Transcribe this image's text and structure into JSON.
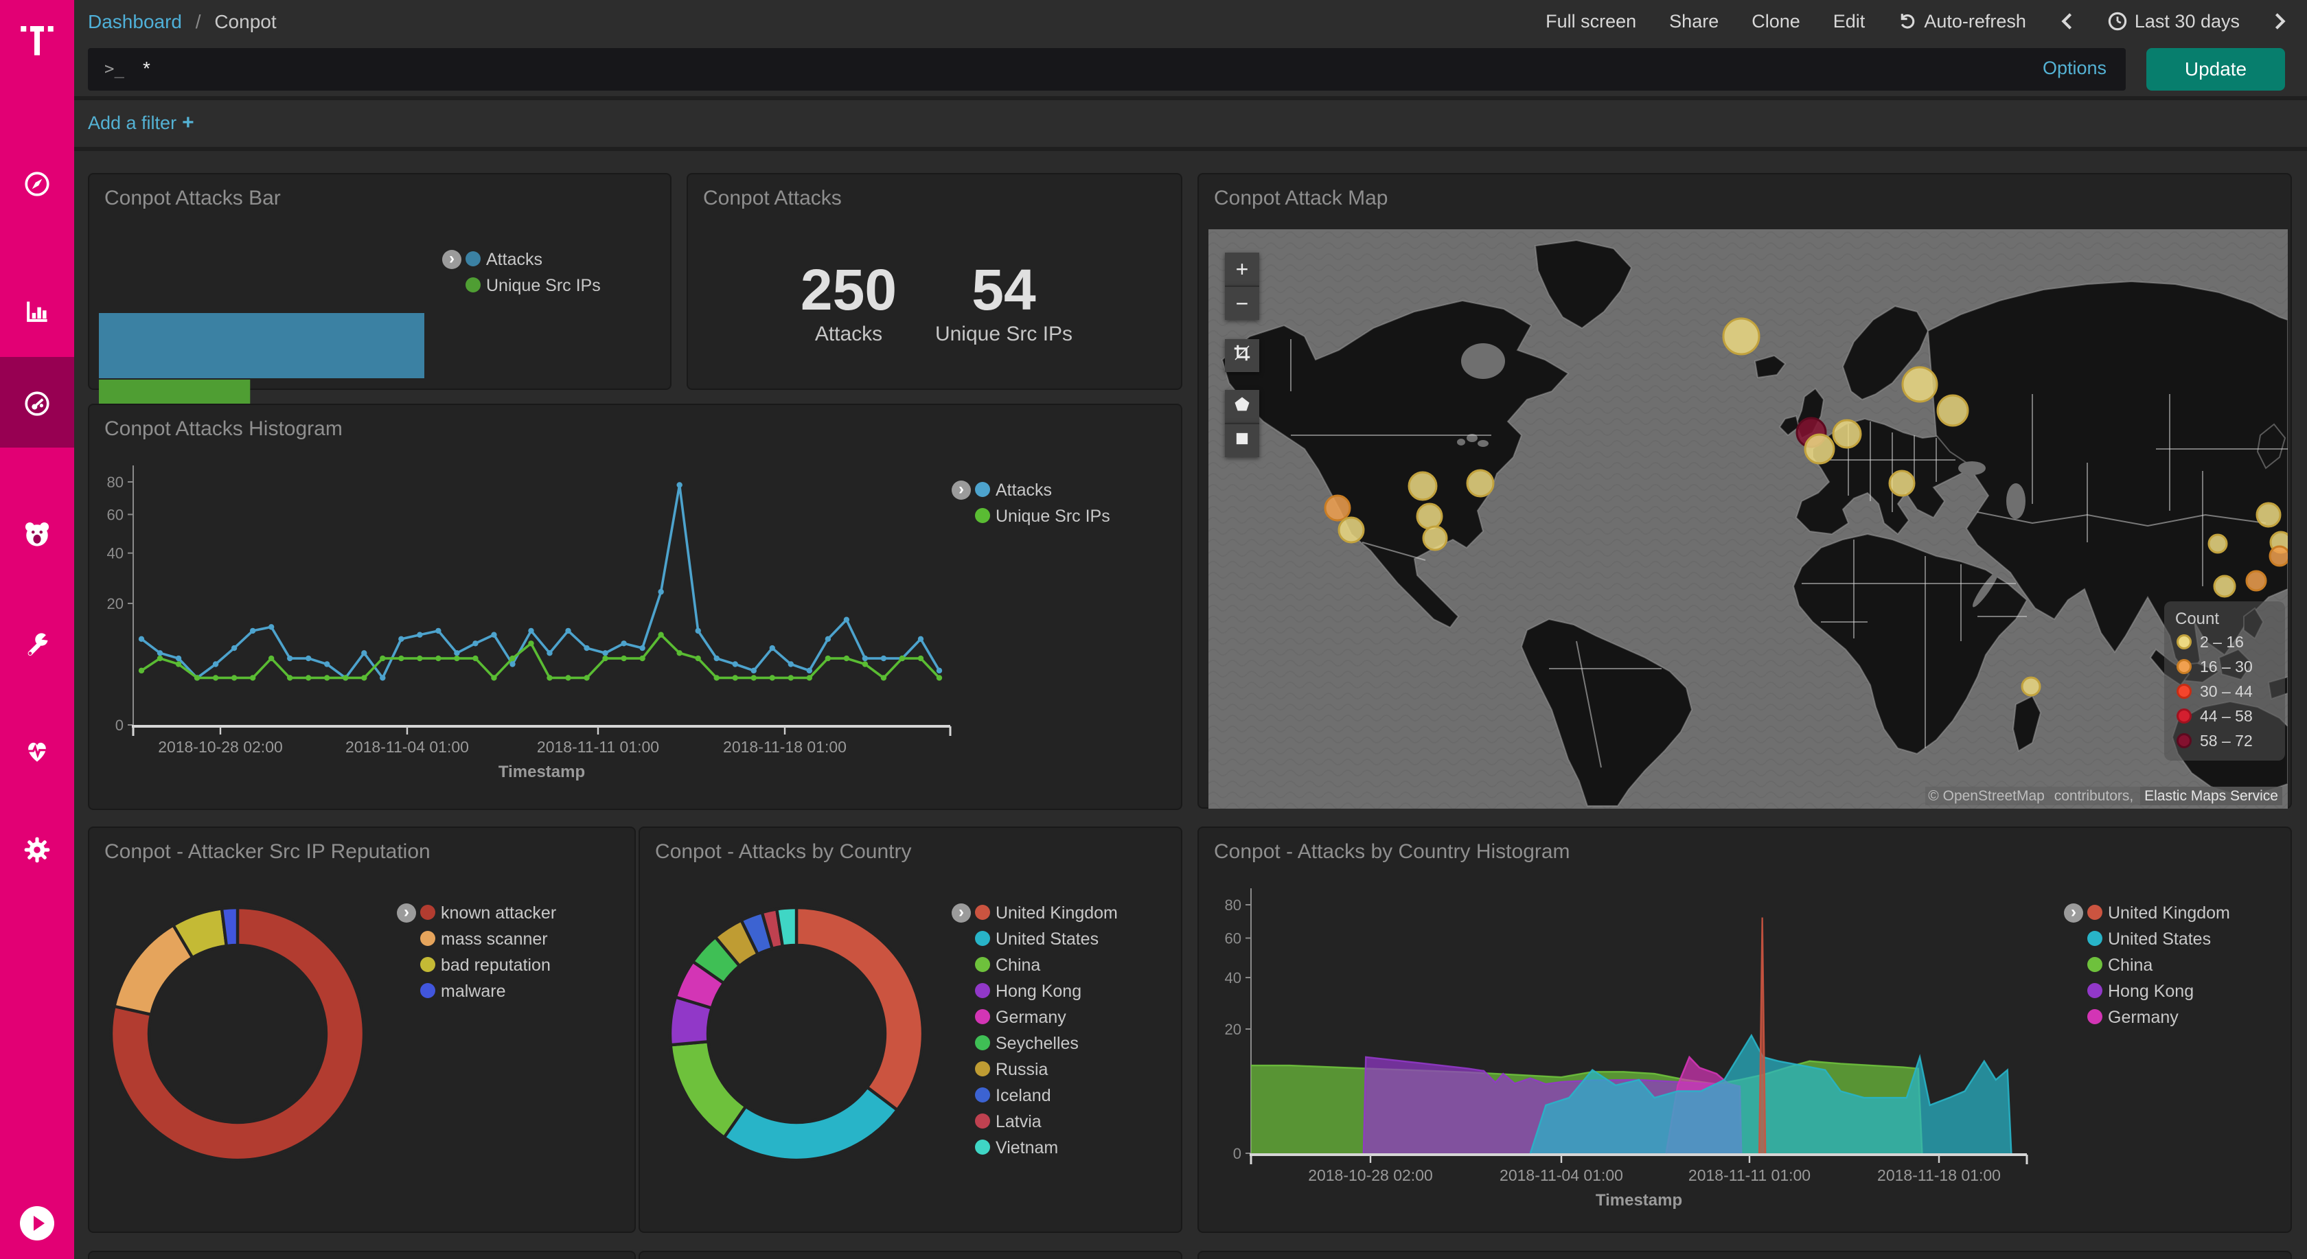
{
  "sidebar": {
    "brand": "T",
    "items": [
      {
        "name": "discover",
        "icon": "compass-icon"
      },
      {
        "name": "visualize",
        "icon": "bar-chart-icon"
      },
      {
        "name": "dashboard",
        "icon": "gauge-icon",
        "active": true
      },
      {
        "name": "timelion",
        "icon": "bear-icon"
      },
      {
        "name": "dev-tools",
        "icon": "wrench-icon"
      },
      {
        "name": "monitoring",
        "icon": "heartbeat-icon"
      },
      {
        "name": "management",
        "icon": "gear-icon"
      }
    ]
  },
  "topnav": {
    "breadcrumb": {
      "root": "Dashboard",
      "sep": "/",
      "current": "Conpot"
    },
    "menu": [
      "Full screen",
      "Share",
      "Clone",
      "Edit"
    ],
    "auto_refresh": "Auto-refresh",
    "time_range": "Last 30 days"
  },
  "query_bar": {
    "prompt": ">_",
    "value": "*",
    "options_label": "Options",
    "update_label": "Update"
  },
  "filter_bar": {
    "add_filter_label": "Add a filter",
    "plus": "+"
  },
  "panels": [
    {
      "title": "Conpot Attacks Bar"
    },
    {
      "title": "Conpot Attacks"
    },
    {
      "title": "Conpot Attack Map"
    },
    {
      "title": "Conpot Attacks Histogram"
    },
    {
      "title": "Conpot - Attacker Src IP Reputation"
    },
    {
      "title": "Conpot - Attacks by Country"
    },
    {
      "title": "Conpot - Attacks by Country Histogram"
    }
  ],
  "accent_colors": {
    "brand_magenta": "#e20074",
    "update_teal": "#077e6d",
    "link_blue": "#54b2d4"
  },
  "chart_data": [
    {
      "id": "attacks_bar",
      "type": "bar",
      "orientation": "horizontal",
      "scale": "sqrt",
      "categories": [
        "Attacks",
        "Unique Src IPs"
      ],
      "values": [
        250,
        54
      ],
      "colors": [
        "#3b81a3",
        "#4f9e33"
      ],
      "xticks": [
        50,
        100,
        150,
        200
      ],
      "xmax": 250,
      "legend": [
        "Attacks",
        "Unique Src IPs"
      ],
      "legend_position": "right"
    },
    {
      "id": "attacks_metric",
      "type": "metric",
      "metrics": [
        {
          "value": "250",
          "label": "Attacks"
        },
        {
          "value": "54",
          "label": "Unique Src IPs"
        }
      ]
    },
    {
      "id": "attack_map",
      "type": "map",
      "legend_title": "Count",
      "bins": [
        {
          "label": "2 – 16",
          "fill": "#ecd982",
          "stroke": "#c2a23d"
        },
        {
          "label": "16 – 30",
          "fill": "#f0a04f",
          "stroke": "#c97d24"
        },
        {
          "label": "30 – 44",
          "fill": "#f5452c",
          "stroke": "#c62d15"
        },
        {
          "label": "44 – 58",
          "fill": "#d41f2f",
          "stroke": "#a01220"
        },
        {
          "label": "58 – 72",
          "fill": "#84112f",
          "stroke": "#5c0a1f"
        }
      ],
      "bubbles": [
        {
          "x": 388,
          "y": 78,
          "r": 13,
          "bin": 0
        },
        {
          "x": 518,
          "y": 113,
          "r": 12.5,
          "bin": 0
        },
        {
          "x": 542,
          "y": 132,
          "r": 11,
          "bin": 0
        },
        {
          "x": 439,
          "y": 148,
          "r": 10.5,
          "bin": 4
        },
        {
          "x": 465,
          "y": 149,
          "r": 10,
          "bin": 0
        },
        {
          "x": 445,
          "y": 160,
          "r": 10.5,
          "bin": 0
        },
        {
          "x": 505,
          "y": 185,
          "r": 9,
          "bin": 0
        },
        {
          "x": 198,
          "y": 185,
          "r": 9.5,
          "bin": 0
        },
        {
          "x": 156,
          "y": 187,
          "r": 10,
          "bin": 0
        },
        {
          "x": 94,
          "y": 203,
          "r": 9,
          "bin": 1
        },
        {
          "x": 104,
          "y": 219,
          "r": 9,
          "bin": 0
        },
        {
          "x": 161,
          "y": 209,
          "r": 9,
          "bin": 0
        },
        {
          "x": 165,
          "y": 225,
          "r": 8.5,
          "bin": 0
        },
        {
          "x": 772,
          "y": 208,
          "r": 8.5,
          "bin": 0
        },
        {
          "x": 735,
          "y": 229,
          "r": 6.5,
          "bin": 0
        },
        {
          "x": 781,
          "y": 228,
          "r": 7.5,
          "bin": 0
        },
        {
          "x": 780,
          "y": 238,
          "r": 7,
          "bin": 1
        },
        {
          "x": 763,
          "y": 256,
          "r": 7,
          "bin": 1
        },
        {
          "x": 740,
          "y": 260,
          "r": 7.5,
          "bin": 0
        },
        {
          "x": 599,
          "y": 333,
          "r": 6.5,
          "bin": 0
        }
      ],
      "controls": [
        "zoom-in",
        "zoom-out",
        "fit-crop",
        "draw-polygon",
        "draw-rectangle"
      ],
      "attribution": {
        "c1": "© OpenStreetMap",
        "c2": " contributors, ",
        "c3": "Elastic Maps Service"
      }
    },
    {
      "id": "attacks_histogram",
      "type": "line",
      "scale": "sqrt",
      "ymax": 80,
      "yticks": [
        0,
        20,
        40,
        60,
        80
      ],
      "xlabel": "Timestamp",
      "xticks": [
        "2018-10-28 02:00",
        "2018-11-04 01:00",
        "2018-11-11 01:00",
        "2018-11-18 01:00"
      ],
      "series": [
        {
          "name": "Attacks",
          "color": "#4da3cd",
          "values": [
            10,
            7,
            6,
            3,
            5,
            8,
            12,
            13,
            6,
            6,
            5,
            3,
            7,
            3,
            10,
            11,
            12,
            7,
            9,
            11,
            5,
            12,
            7,
            12,
            8,
            7,
            9,
            8,
            24,
            78,
            12,
            6,
            5,
            4,
            8,
            5,
            4,
            10,
            15,
            6,
            6,
            6,
            10,
            4
          ]
        },
        {
          "name": "Unique Src IPs",
          "color": "#5abc33",
          "values": [
            4,
            6,
            5,
            3,
            3,
            3,
            3,
            6,
            3,
            3,
            3,
            3,
            3,
            6,
            6,
            6,
            6,
            6,
            6,
            3,
            6,
            9,
            3,
            3,
            3,
            6,
            6,
            6,
            11,
            7,
            6,
            3,
            3,
            3,
            3,
            3,
            3,
            6,
            6,
            5,
            3,
            6,
            6,
            3
          ]
        }
      ]
    },
    {
      "id": "reputation_donut",
      "type": "pie",
      "donut": true,
      "labels": [
        "known attacker",
        "mass scanner",
        "bad reputation",
        "malware"
      ],
      "values": [
        78.5,
        13,
        6.5,
        2
      ],
      "colors": [
        "#b23c30",
        "#e5a45c",
        "#c4ba35",
        "#4156dd"
      ]
    },
    {
      "id": "country_donut",
      "type": "pie",
      "donut": true,
      "labels": [
        "United Kingdom",
        "United States",
        "China",
        "Hong Kong",
        "Germany",
        "Seychelles",
        "Russia",
        "Iceland",
        "Latvia",
        "Vietnam"
      ],
      "values": [
        35.3,
        24.4,
        13.9,
        6.1,
        5.0,
        4.2,
        3.9,
        2.8,
        1.9,
        2.5
      ],
      "colors": [
        "#cb5440",
        "#28b4c8",
        "#6ec13c",
        "#9138c8",
        "#d335b5",
        "#3fbf55",
        "#bf9c33",
        "#3c63d2",
        "#bf4150",
        "#3fd6c5"
      ]
    },
    {
      "id": "country_histogram",
      "type": "area",
      "scale": "sqrt",
      "ymax": 80,
      "yticks": [
        0,
        20,
        40,
        60,
        80
      ],
      "xlabel": "Timestamp",
      "xticks": [
        "2018-10-28 02:00",
        "2018-11-04 01:00",
        "2018-11-11 01:00",
        "2018-11-18 01:00"
      ],
      "series": [
        {
          "name": "United Kingdom",
          "color": "#cb5440",
          "points": [
            [
              0.655,
              0
            ],
            [
              0.659,
              72
            ],
            [
              0.663,
              0
            ]
          ]
        },
        {
          "name": "United States",
          "color": "#28b4c8",
          "points": [
            [
              0.36,
              0
            ],
            [
              0.38,
              3
            ],
            [
              0.41,
              4
            ],
            [
              0.44,
              9
            ],
            [
              0.47,
              6
            ],
            [
              0.5,
              7
            ],
            [
              0.52,
              4
            ],
            [
              0.55,
              5
            ],
            [
              0.58,
              5
            ],
            [
              0.61,
              7
            ],
            [
              0.645,
              18
            ],
            [
              0.66,
              12
            ],
            [
              0.68,
              11
            ],
            [
              0.71,
              10
            ],
            [
              0.74,
              9
            ],
            [
              0.76,
              5
            ],
            [
              0.79,
              4
            ],
            [
              0.82,
              4
            ],
            [
              0.845,
              4
            ],
            [
              0.862,
              12
            ],
            [
              0.875,
              3
            ],
            [
              0.9,
              4
            ],
            [
              0.92,
              5
            ],
            [
              0.945,
              11
            ],
            [
              0.96,
              7
            ],
            [
              0.975,
              9
            ],
            [
              0.98,
              0
            ]
          ]
        },
        {
          "name": "China",
          "color": "#6ec13c",
          "points": [
            [
              0,
              10
            ],
            [
              0.05,
              10
            ],
            [
              0.12,
              9.5
            ],
            [
              0.2,
              9
            ],
            [
              0.28,
              8.5
            ],
            [
              0.34,
              8
            ],
            [
              0.4,
              7.5
            ],
            [
              0.44,
              8.6
            ],
            [
              0.48,
              8.6
            ],
            [
              0.52,
              8.2
            ],
            [
              0.56,
              7
            ],
            [
              0.6,
              6.2
            ],
            [
              0.63,
              7
            ],
            [
              0.66,
              8
            ],
            [
              0.7,
              10
            ],
            [
              0.72,
              11
            ],
            [
              0.76,
              10.4
            ],
            [
              0.8,
              10
            ],
            [
              0.84,
              9.6
            ],
            [
              0.86,
              9.3
            ],
            [
              0.865,
              0
            ]
          ]
        },
        {
          "name": "Hong Kong",
          "color": "#9138c8",
          "points": [
            [
              0.145,
              0
            ],
            [
              0.148,
              12
            ],
            [
              0.22,
              10.5
            ],
            [
              0.28,
              9.3
            ],
            [
              0.3,
              8.8
            ],
            [
              0.315,
              6.5
            ],
            [
              0.325,
              8.2
            ],
            [
              0.34,
              6.3
            ],
            [
              0.36,
              7.3
            ],
            [
              0.38,
              6.2
            ],
            [
              0.4,
              6.6
            ],
            [
              0.44,
              6.9
            ],
            [
              0.5,
              7
            ],
            [
              0.55,
              6.6
            ],
            [
              0.6,
              6.2
            ],
            [
              0.63,
              5.8
            ],
            [
              0.632,
              0
            ]
          ]
        },
        {
          "name": "Germany",
          "color": "#d335b5",
          "points": [
            [
              0.535,
              0
            ],
            [
              0.55,
              6
            ],
            [
              0.565,
              12
            ],
            [
              0.578,
              9.5
            ],
            [
              0.6,
              8.2
            ],
            [
              0.615,
              6.3
            ],
            [
              0.63,
              5.8
            ],
            [
              0.632,
              0
            ]
          ]
        }
      ]
    }
  ]
}
